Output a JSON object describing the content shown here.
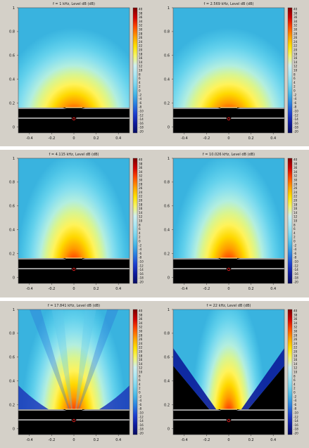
{
  "colorbar_ticks": [
    "40",
    "38",
    "36",
    "34",
    "32",
    "30",
    "28",
    "26",
    "24",
    "22",
    "20",
    "18",
    "16",
    "14",
    "12",
    "10",
    "8",
    "6",
    "4",
    "2",
    "0",
    "-2",
    "-4",
    "-6",
    "-8",
    "-10",
    "-12",
    "-14",
    "-16",
    "-18",
    "-20"
  ],
  "chart_data": [
    {
      "type": "heatmap",
      "title": "f = 1 kHz, Level dB  (dB)",
      "frequency_khz": 1,
      "beam": "wide",
      "xlim": [
        -0.5,
        0.5
      ],
      "ylim": [
        -0.05,
        1
      ],
      "xticks": [
        "-0.4",
        "-0.2",
        "0",
        "0.2",
        "0.4"
      ],
      "yticks": [
        "1",
        "0.8",
        "0.6",
        "0.4",
        "0.2",
        "0"
      ],
      "colorbar_range_db": [
        -20,
        40
      ]
    },
    {
      "type": "heatmap",
      "title": "f = 2.569 kHz, Level dB  (dB)",
      "frequency_khz": 2.569,
      "beam": "wide",
      "xlim": [
        -0.5,
        0.5
      ],
      "ylim": [
        -0.05,
        1
      ],
      "xticks": [
        "-0.4",
        "-0.2",
        "0",
        "0.2",
        "0.4"
      ],
      "yticks": [
        "1",
        "0.8",
        "0.6",
        "0.4",
        "0.2",
        "0"
      ],
      "colorbar_range_db": [
        -20,
        40
      ]
    },
    {
      "type": "heatmap",
      "title": "f = 4.115 kHz, Level dB  (dB)",
      "frequency_khz": 4.115,
      "beam": "medium",
      "xlim": [
        -0.5,
        0.5
      ],
      "ylim": [
        -0.05,
        1
      ],
      "xticks": [
        "-0.4",
        "-0.2",
        "0",
        "0.2",
        "0.4"
      ],
      "yticks": [
        "1",
        "0.8",
        "0.6",
        "0.4",
        "0.2",
        "0"
      ],
      "colorbar_range_db": [
        -20,
        40
      ]
    },
    {
      "type": "heatmap",
      "title": "f = 10.026 kHz, Level dB  (dB)",
      "frequency_khz": 10.026,
      "beam": "medium",
      "xlim": [
        -0.5,
        0.5
      ],
      "ylim": [
        -0.05,
        1
      ],
      "xticks": [
        "-0.4",
        "-0.2",
        "0",
        "0.2",
        "0.4"
      ],
      "yticks": [
        "1",
        "0.8",
        "0.6",
        "0.4",
        "0.2",
        "0"
      ],
      "colorbar_range_db": [
        -20,
        40
      ]
    },
    {
      "type": "heatmap",
      "title": "f = 17.841 kHz, Level dB  (dB)",
      "frequency_khz": 17.841,
      "beam": "lobed",
      "xlim": [
        -0.5,
        0.5
      ],
      "ylim": [
        -0.05,
        1
      ],
      "xticks": [
        "-0.4",
        "-0.2",
        "0",
        "0.2",
        "0.4"
      ],
      "yticks": [
        "1",
        "0.8",
        "0.6",
        "0.4",
        "0.2",
        "0"
      ],
      "colorbar_range_db": [
        -20,
        40
      ]
    },
    {
      "type": "heatmap",
      "title": "f = 22 kHz, Level dB  (dB)",
      "frequency_khz": 22,
      "beam": "narrow",
      "xlim": [
        -0.5,
        0.5
      ],
      "ylim": [
        -0.05,
        1
      ],
      "xticks": [
        "-0.4",
        "-0.2",
        "0",
        "0.2",
        "0.4"
      ],
      "yticks": [
        "1",
        "0.8",
        "0.6",
        "0.4",
        "0.2",
        "0"
      ],
      "colorbar_range_db": [
        -20,
        40
      ]
    }
  ]
}
